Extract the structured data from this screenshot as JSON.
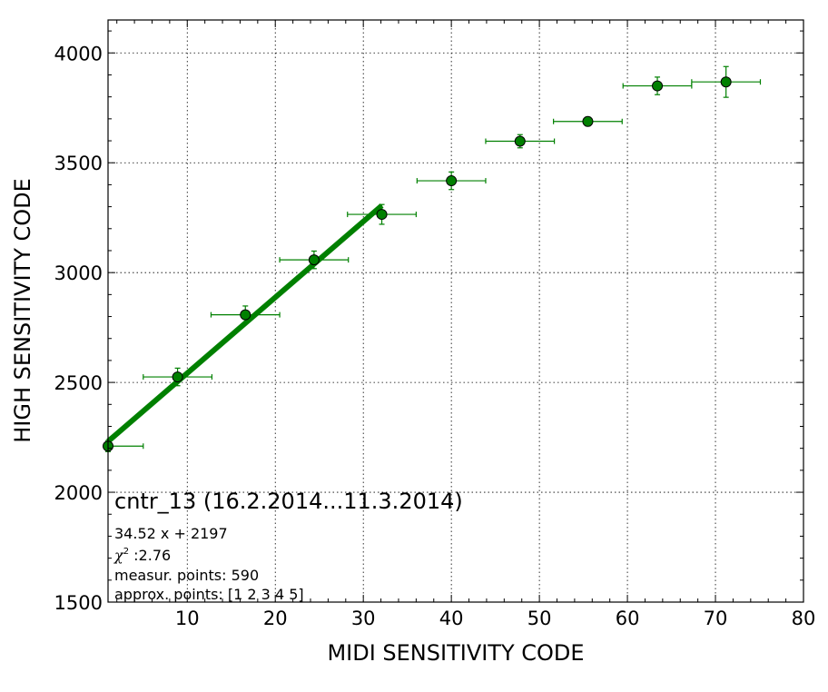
{
  "chart_data": {
    "type": "scatter",
    "xlabel": "MIDI SENSITIVITY CODE",
    "ylabel": "HIGH SENSITIVITY CODE",
    "xlim": [
      1,
      80
    ],
    "ylim": [
      1500,
      4150
    ],
    "x_ticks": [
      10,
      20,
      30,
      40,
      50,
      60,
      70,
      80
    ],
    "y_ticks": [
      1500,
      2000,
      2500,
      3000,
      3500,
      4000
    ],
    "x_minor_step": 2,
    "y_minor_step": 100,
    "grid": true,
    "marker_color": "#008000",
    "series": [
      {
        "points": [
          {
            "x": 1,
            "y": 2210,
            "xerr": 4,
            "yerr": 25
          },
          {
            "x": 8.9,
            "y": 2525,
            "xerr": 3.9,
            "yerr": 40
          },
          {
            "x": 16.6,
            "y": 2808,
            "xerr": 3.9,
            "yerr": 40
          },
          {
            "x": 24.4,
            "y": 3058,
            "xerr": 3.9,
            "yerr": 40
          },
          {
            "x": 32.1,
            "y": 3265,
            "xerr": 3.9,
            "yerr": 45
          },
          {
            "x": 40,
            "y": 3418,
            "xerr": 3.9,
            "yerr": 40
          },
          {
            "x": 47.8,
            "y": 3598,
            "xerr": 3.9,
            "yerr": 30
          },
          {
            "x": 55.5,
            "y": 3688,
            "xerr": 3.9,
            "yerr": 20
          },
          {
            "x": 63.4,
            "y": 3850,
            "xerr": 3.9,
            "yerr": 40
          },
          {
            "x": 71.2,
            "y": 3868,
            "xerr": 3.9,
            "yerr": 70
          }
        ]
      }
    ],
    "fit": {
      "slope": 34.52,
      "intercept": 2197,
      "x_range": [
        1,
        32.1
      ],
      "color": "#008000"
    },
    "annotations": {
      "title": "cntr_13 (16.2.2014...11.3.2014)",
      "equation": "34.52 x + 2197",
      "chi2_symbol": "χ",
      "chi2_superscript": "2",
      "chi2_value": " :2.76",
      "measur_points": "measur. points: 590",
      "approx_points": "approx. points: [1 2 3 4 5]"
    }
  }
}
